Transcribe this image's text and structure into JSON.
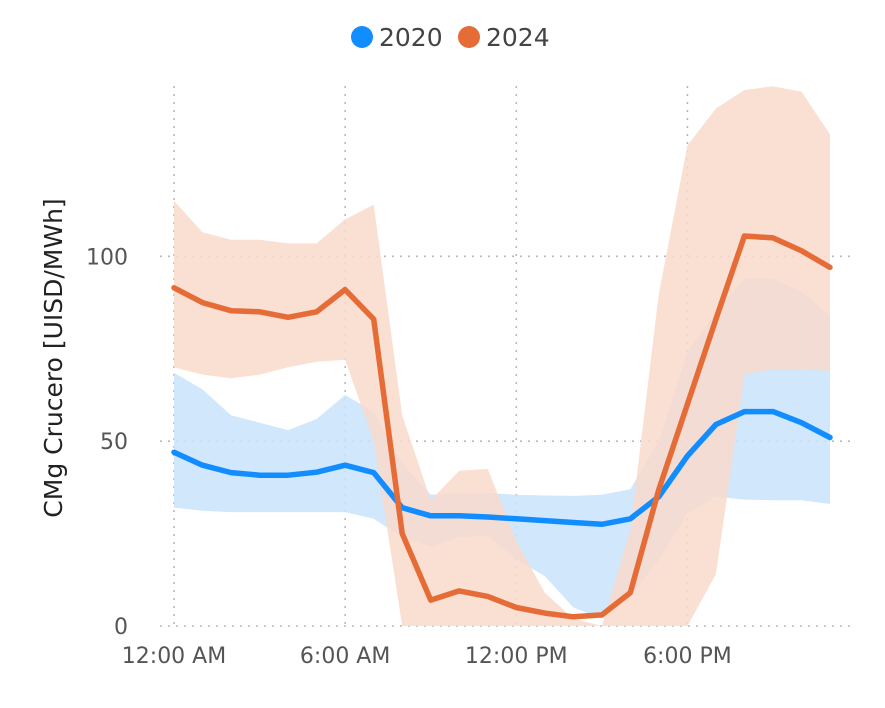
{
  "chart_data": {
    "type": "line",
    "title": "",
    "xlabel": "",
    "ylabel": "CMg Crucero [UISD/MWh]",
    "x_tick_labels": [
      "12:00 AM",
      "6:00 AM",
      "12:00 PM",
      "6:00 PM"
    ],
    "x_tick_hours": [
      0,
      6,
      12,
      18
    ],
    "y_ticks": [
      0,
      50,
      100
    ],
    "ylim": [
      0,
      145
    ],
    "xlim": [
      0,
      23
    ],
    "grid": true,
    "legend_position": "top-center",
    "x": [
      0,
      1,
      2,
      3,
      4,
      5,
      6,
      7,
      8,
      9,
      10,
      11,
      12,
      13,
      14,
      15,
      16,
      17,
      18,
      19,
      20,
      21,
      22,
      23
    ],
    "series": [
      {
        "name": "2020",
        "color": "#118DFF",
        "band_color": "#C9E3FB",
        "values": [
          47,
          43.5,
          41.5,
          40.8,
          40.8,
          41.6,
          43.5,
          41.5,
          32,
          29.8,
          29.8,
          29.5,
          29,
          28.5,
          28,
          27.5,
          29,
          35,
          46,
          54.5,
          58,
          58,
          55,
          51
        ],
        "upper": [
          68.5,
          64,
          57,
          55,
          53,
          56,
          62.5,
          58,
          44,
          35.5,
          36,
          36,
          35.5,
          35.3,
          35.2,
          35.5,
          37,
          50,
          74,
          85,
          94,
          94,
          90.5,
          84
        ],
        "lower": [
          32,
          31.2,
          30.8,
          30.8,
          30.8,
          30.8,
          30.8,
          29,
          24,
          21.5,
          24,
          24.5,
          18,
          13.5,
          5,
          2,
          8,
          18,
          30.5,
          35,
          34.2,
          34,
          34,
          33
        ]
      },
      {
        "name": "2024",
        "color": "#E66C37",
        "band_color": "#F9D9CB",
        "values": [
          91.5,
          87.5,
          85.3,
          85,
          83.5,
          85,
          91,
          83,
          25,
          7,
          9.5,
          8,
          5,
          3.5,
          2.5,
          3,
          9,
          37,
          60,
          83,
          105.5,
          105,
          101.5,
          97
        ],
        "upper": [
          115,
          106.5,
          104.5,
          104.5,
          103.5,
          103.5,
          110,
          114,
          57,
          34,
          42,
          42.5,
          23,
          9,
          2,
          0,
          26,
          90,
          130,
          140,
          145,
          146,
          144.5,
          133
        ],
        "lower": [
          70,
          68,
          67,
          68,
          70,
          71.5,
          72,
          50,
          0,
          0,
          0,
          0,
          0,
          0,
          0,
          0,
          0,
          0,
          0,
          14,
          68,
          69.5,
          69.5,
          69
        ]
      }
    ]
  }
}
